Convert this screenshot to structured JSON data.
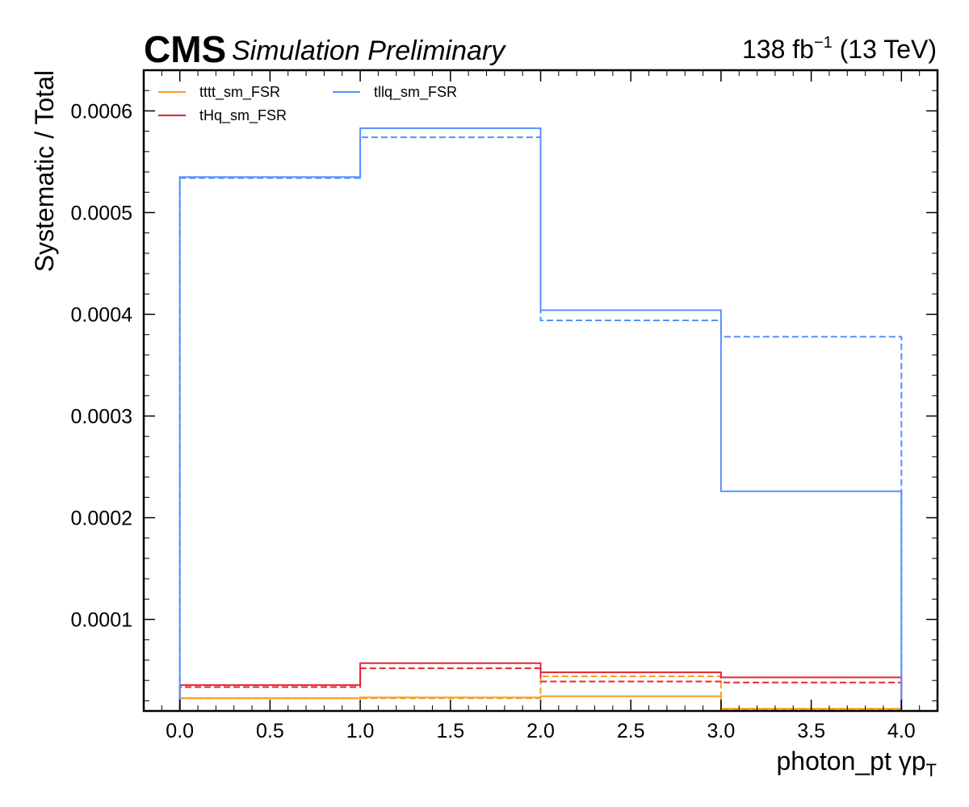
{
  "header": {
    "experiment": "CMS",
    "status": "Simulation Preliminary",
    "lumi_value": "138 fb",
    "lumi_exponent": "−1",
    "energy": "(13 TeV)"
  },
  "chart_data": {
    "type": "line",
    "style": "step-histogram",
    "xlabel": "photon_pt   γp",
    "xlabel_subscript": "T",
    "ylabel": "Systematic / Total",
    "xlim": [
      -0.2,
      4.2
    ],
    "ylim": [
      1e-05,
      0.00064
    ],
    "bin_edges": [
      0,
      1,
      2,
      3,
      4
    ],
    "x_ticks": [
      0.0,
      0.5,
      1.0,
      1.5,
      2.0,
      2.5,
      3.0,
      3.5,
      4.0
    ],
    "x_tick_labels": [
      "0.0",
      "0.5",
      "1.0",
      "1.5",
      "2.0",
      "2.5",
      "3.0",
      "3.5",
      "4.0"
    ],
    "y_ticks": [
      0.0001,
      0.0002,
      0.0003,
      0.0004,
      0.0005,
      0.0006
    ],
    "y_tick_labels": [
      "0.0001",
      "0.0002",
      "0.0003",
      "0.0004",
      "0.0005",
      "0.0006"
    ],
    "legend_position": "top-left",
    "series": [
      {
        "name": "tttt_sm_FSR",
        "color": "#f89c20",
        "solid": [
          2.25e-05,
          2.33e-05,
          2.45e-05,
          1.22e-05
        ],
        "dashed": [
          2.25e-05,
          2.25e-05,
          4.4e-05,
          1.15e-05
        ]
      },
      {
        "name": "tHq_sm_FSR",
        "color": "#e42536",
        "solid": [
          3.55e-05,
          5.7e-05,
          4.8e-05,
          4.3e-05
        ],
        "dashed": [
          3.35e-05,
          5.2e-05,
          3.9e-05,
          3.8e-05
        ]
      },
      {
        "name": "tllq_sm_FSR",
        "color": "#5790fc",
        "solid": [
          0.000535,
          0.000583,
          0.000404,
          0.000226
        ],
        "dashed": [
          0.000534,
          0.000574,
          0.000394,
          0.000378
        ]
      }
    ]
  }
}
